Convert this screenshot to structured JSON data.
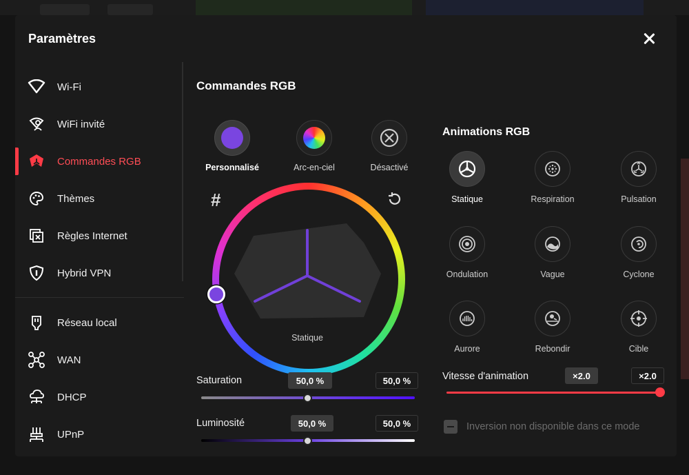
{
  "dialog": {
    "title": "Paramètres"
  },
  "sidebar": {
    "items": [
      {
        "label": "Wi-Fi",
        "icon": "wifi-icon"
      },
      {
        "label": "WiFi invité",
        "icon": "guest-wifi-icon"
      },
      {
        "label": "Commandes RGB",
        "icon": "rgb-icon",
        "active": true
      },
      {
        "label": "Thèmes",
        "icon": "palette-icon"
      },
      {
        "label": "Règles Internet",
        "icon": "internet-rules-icon"
      },
      {
        "label": "Hybrid VPN",
        "icon": "shield-icon"
      },
      {
        "label": "Réseau local",
        "icon": "lan-icon"
      },
      {
        "label": "WAN",
        "icon": "wan-icon"
      },
      {
        "label": "DHCP",
        "icon": "dhcp-icon"
      },
      {
        "label": "UPnP",
        "icon": "upnp-icon"
      }
    ]
  },
  "rgb": {
    "title": "Commandes RGB",
    "modes": [
      {
        "label": "Personnalisé",
        "selected": true
      },
      {
        "label": "Arc-en-ciel",
        "selected": false
      },
      {
        "label": "Désactivé",
        "selected": false
      }
    ],
    "hash_symbol": "#",
    "wheel_label": "Statique",
    "selected_color": "#7a45e0",
    "saturation": {
      "label": "Saturation",
      "value": "50,0 %",
      "input": "50,0 %",
      "level": 0.5
    },
    "luminosity": {
      "label": "Luminosité",
      "value": "50,0 %",
      "input": "50,0 %",
      "level": 0.5
    }
  },
  "animations": {
    "title": "Animations RGB",
    "items": [
      {
        "label": "Statique",
        "icon": "static-icon",
        "selected": true
      },
      {
        "label": "Respiration",
        "icon": "breathing-icon"
      },
      {
        "label": "Pulsation",
        "icon": "pulse-icon"
      },
      {
        "label": "Ondulation",
        "icon": "ripple-icon"
      },
      {
        "label": "Vague",
        "icon": "wave-icon"
      },
      {
        "label": "Cyclone",
        "icon": "cyclone-icon"
      },
      {
        "label": "Aurore",
        "icon": "aurora-icon"
      },
      {
        "label": "Rebondir",
        "icon": "bounce-icon"
      },
      {
        "label": "Cible",
        "icon": "target-icon"
      }
    ],
    "speed": {
      "label": "Vitesse d'animation",
      "value": "×2.0",
      "input": "×2.0",
      "level": 1.0
    },
    "inversion_label": "Inversion non disponible dans ce mode"
  },
  "colors": {
    "accent": "#ff3b46",
    "purple": "#7a45e0"
  }
}
